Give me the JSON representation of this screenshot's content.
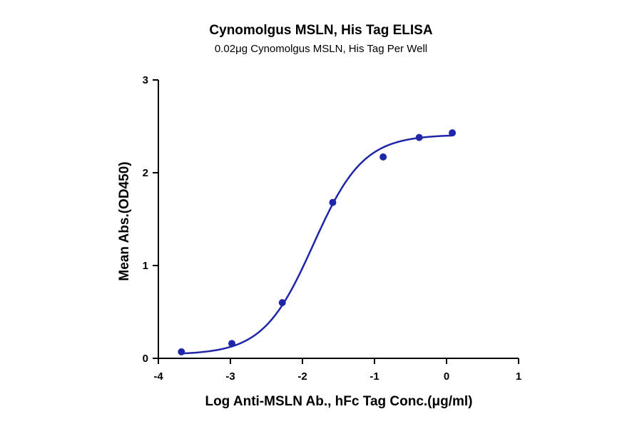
{
  "chart_data": {
    "type": "scatter",
    "title": "Cynomolgus MSLN, His Tag ELISA",
    "subtitle": "0.02μg Cynomolgus  MSLN, His Tag Per Well",
    "xlabel": "Log Anti-MSLN Ab., hFc Tag Conc.(μg/ml)",
    "ylabel": "Mean Abs.(OD450)",
    "xlim": [
      -4,
      1
    ],
    "ylim": [
      0,
      3
    ],
    "x_ticks": [
      "-4",
      "-3",
      "-2",
      "-1",
      "0",
      "1"
    ],
    "y_ticks": [
      "0",
      "1",
      "2",
      "3"
    ],
    "grid": false,
    "legend": "none",
    "series": [
      {
        "points": [
          {
            "x": -3.68,
            "y": 0.07
          },
          {
            "x": -2.98,
            "y": 0.16
          },
          {
            "x": -2.28,
            "y": 0.6
          },
          {
            "x": -1.58,
            "y": 1.68
          },
          {
            "x": -0.88,
            "y": 2.17
          },
          {
            "x": -0.38,
            "y": 2.38
          },
          {
            "x": 0.08,
            "y": 2.43
          }
        ],
        "fit": {
          "model": "4PL",
          "bottom": 0.04,
          "top": 2.41,
          "log_ec50": -1.85,
          "hill": 1.25
        }
      }
    ],
    "colors": {
      "series": "#1f26a8",
      "axis": "#000000"
    }
  }
}
